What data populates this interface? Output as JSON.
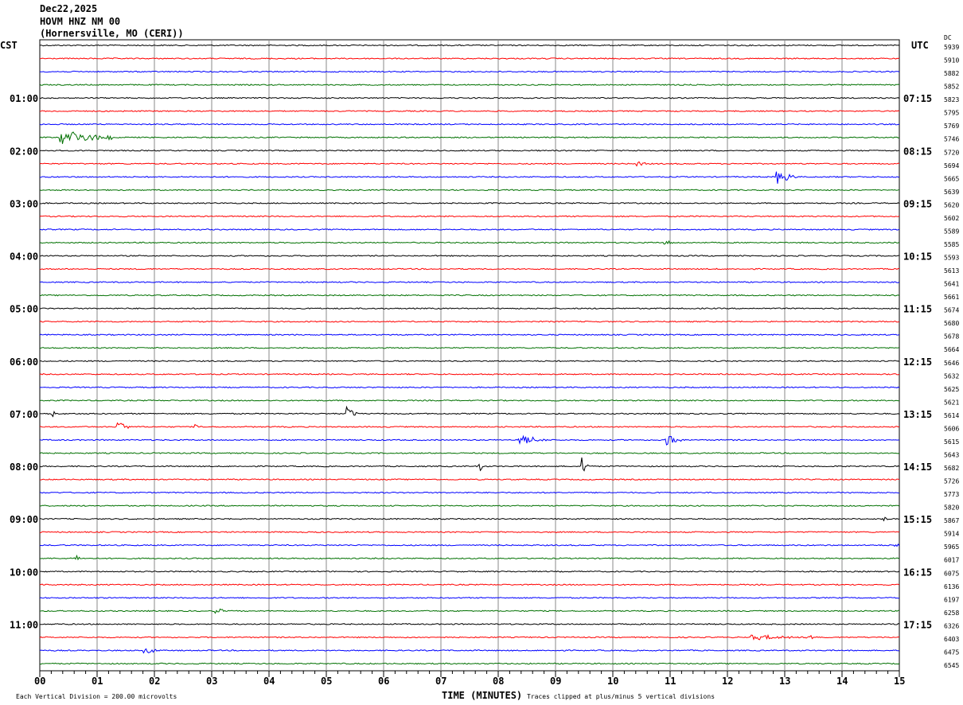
{
  "header": {
    "date": "Dec22,2025",
    "station": "HOVM HNZ NM 00",
    "location": "(Hornersville, MO (CERI))"
  },
  "left_tz": "CST",
  "right_tz": "UTC",
  "dc_header": "DC",
  "chart_data": {
    "type": "line",
    "title": "HOVM HNZ NM 00 helicorder",
    "xlabel": "TIME (MINUTES)",
    "x_ticks": [
      "00",
      "01",
      "02",
      "03",
      "04",
      "05",
      "06",
      "07",
      "08",
      "09",
      "10",
      "11",
      "12",
      "13",
      "14",
      "15"
    ],
    "xlim": [
      0,
      15
    ],
    "trace_minutes": 15,
    "trace_count": 48,
    "trace_colors": [
      "#000000",
      "#ff0000",
      "#0000ff",
      "#007000"
    ],
    "left_labels": [
      "01:00",
      "02:00",
      "03:00",
      "04:00",
      "05:00",
      "06:00",
      "07:00",
      "08:00",
      "09:00",
      "10:00",
      "11:00"
    ],
    "right_labels": [
      "07:15",
      "08:15",
      "09:15",
      "10:15",
      "11:15",
      "12:15",
      "13:15",
      "14:15",
      "15:15",
      "16:15",
      "17:15"
    ],
    "dc_offsets": [
      "5939",
      "5910",
      "5882",
      "5852",
      "5823",
      "5795",
      "5769",
      "5746",
      "5720",
      "5694",
      "5665",
      "5639",
      "5620",
      "5602",
      "5589",
      "5585",
      "5593",
      "5613",
      "5641",
      "5661",
      "5674",
      "5680",
      "5678",
      "5664",
      "5646",
      "5632",
      "5625",
      "5621",
      "5614",
      "5606",
      "5615",
      "5643",
      "5682",
      "5726",
      "5773",
      "5820",
      "5867",
      "5914",
      "5965",
      "6017",
      "6075",
      "6136",
      "6197",
      "6258",
      "6326",
      "6403",
      "6475",
      "6545"
    ],
    "events": [
      {
        "trace": 7,
        "minute": 0.35,
        "amp": 10,
        "dur": 0.9
      },
      {
        "trace": 9,
        "minute": 10.4,
        "amp": 4,
        "dur": 0.2
      },
      {
        "trace": 10,
        "minute": 12.85,
        "amp": 9,
        "dur": 0.35
      },
      {
        "trace": 15,
        "minute": 10.85,
        "amp": 5,
        "dur": 0.2
      },
      {
        "trace": 28,
        "minute": 0.2,
        "amp": 6,
        "dur": 0.1
      },
      {
        "trace": 28,
        "minute": 5.35,
        "amp": 9,
        "dur": 0.2
      },
      {
        "trace": 29,
        "minute": 1.35,
        "amp": 11,
        "dur": 0.2
      },
      {
        "trace": 29,
        "minute": 2.7,
        "amp": 4,
        "dur": 0.1
      },
      {
        "trace": 30,
        "minute": 8.35,
        "amp": 6,
        "dur": 0.5
      },
      {
        "trace": 30,
        "minute": 10.9,
        "amp": 8,
        "dur": 0.3
      },
      {
        "trace": 32,
        "minute": 7.65,
        "amp": 9,
        "dur": 0.1
      },
      {
        "trace": 32,
        "minute": 9.45,
        "amp": 12,
        "dur": 0.15
      },
      {
        "trace": 36,
        "minute": 14.7,
        "amp": 5,
        "dur": 0.1
      },
      {
        "trace": 38,
        "minute": 14.9,
        "amp": 4,
        "dur": 0.1
      },
      {
        "trace": 39,
        "minute": 0.6,
        "amp": 8,
        "dur": 0.1
      },
      {
        "trace": 43,
        "minute": 3.05,
        "amp": 7,
        "dur": 0.15
      },
      {
        "trace": 45,
        "minute": 12.4,
        "amp": 3,
        "dur": 1.3
      },
      {
        "trace": 45,
        "minute": 13.45,
        "amp": 5,
        "dur": 0.1
      },
      {
        "trace": 46,
        "minute": 1.8,
        "amp": 4,
        "dur": 0.3
      }
    ]
  },
  "footer": {
    "scale_note": "Each Vertical Division =  200.00 microvolts",
    "clip_note": "Traces clipped at plus/minus 5 vertical divisions"
  }
}
